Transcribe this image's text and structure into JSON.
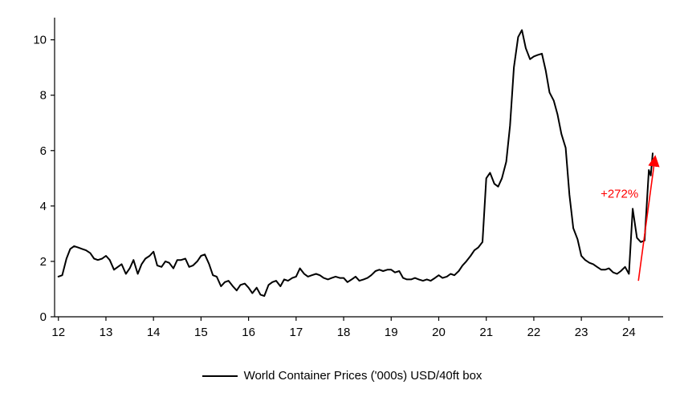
{
  "chart_data": {
    "type": "line",
    "title": "",
    "xlabel": "",
    "ylabel": "",
    "grid": false,
    "line_color": "#000000",
    "axis_color": "#000000",
    "xlim": [
      11.92,
      24.72
    ],
    "ylim": [
      0,
      10.8
    ],
    "x_ticks": [
      12,
      13,
      14,
      15,
      16,
      17,
      18,
      19,
      20,
      21,
      22,
      23,
      24
    ],
    "x_tick_labels": [
      "12",
      "13",
      "14",
      "15",
      "16",
      "17",
      "18",
      "19",
      "20",
      "21",
      "22",
      "23",
      "24"
    ],
    "y_ticks": [
      0,
      2,
      4,
      6,
      8,
      10
    ],
    "y_tick_labels": [
      "0",
      "2",
      "4",
      "6",
      "8",
      "10"
    ],
    "series": [
      {
        "name": "World Container Prices ('000s) USD/40ft box",
        "x": [
          12,
          12.08,
          12.17,
          12.25,
          12.33,
          12.42,
          12.5,
          12.58,
          12.67,
          12.75,
          12.83,
          12.92,
          13,
          13.08,
          13.17,
          13.25,
          13.33,
          13.42,
          13.5,
          13.58,
          13.67,
          13.75,
          13.83,
          13.92,
          14,
          14.08,
          14.17,
          14.25,
          14.33,
          14.42,
          14.5,
          14.58,
          14.67,
          14.75,
          14.83,
          14.92,
          15,
          15.08,
          15.17,
          15.25,
          15.33,
          15.42,
          15.5,
          15.58,
          15.67,
          15.75,
          15.83,
          15.92,
          16,
          16.08,
          16.17,
          16.25,
          16.33,
          16.42,
          16.5,
          16.58,
          16.67,
          16.75,
          16.83,
          16.92,
          17,
          17.08,
          17.17,
          17.25,
          17.33,
          17.42,
          17.5,
          17.58,
          17.67,
          17.75,
          17.83,
          17.92,
          18,
          18.08,
          18.17,
          18.25,
          18.33,
          18.42,
          18.5,
          18.58,
          18.67,
          18.75,
          18.83,
          18.92,
          19,
          19.08,
          19.17,
          19.25,
          19.33,
          19.42,
          19.5,
          19.58,
          19.67,
          19.75,
          19.83,
          19.92,
          20,
          20.08,
          20.17,
          20.25,
          20.33,
          20.42,
          20.5,
          20.58,
          20.67,
          20.75,
          20.83,
          20.92,
          21,
          21.08,
          21.17,
          21.25,
          21.33,
          21.42,
          21.5,
          21.58,
          21.67,
          21.75,
          21.83,
          21.92,
          22,
          22.08,
          22.17,
          22.25,
          22.33,
          22.42,
          22.5,
          22.58,
          22.67,
          22.75,
          22.83,
          22.92,
          23,
          23.08,
          23.17,
          23.25,
          23.33,
          23.42,
          23.5,
          23.58,
          23.67,
          23.75,
          23.83,
          23.92,
          24,
          24.08,
          24.17,
          24.25,
          24.33,
          24.42,
          24.46,
          24.5
        ],
        "y": [
          1.45,
          1.5,
          2.1,
          2.45,
          2.55,
          2.5,
          2.45,
          2.4,
          2.3,
          2.1,
          2.05,
          2.1,
          2.2,
          2.05,
          1.7,
          1.8,
          1.9,
          1.55,
          1.75,
          2.05,
          1.55,
          1.9,
          2.1,
          2.2,
          2.35,
          1.85,
          1.8,
          2.0,
          1.95,
          1.75,
          2.05,
          2.05,
          2.1,
          1.8,
          1.85,
          2.0,
          2.2,
          2.25,
          1.9,
          1.5,
          1.45,
          1.1,
          1.25,
          1.3,
          1.1,
          0.95,
          1.15,
          1.2,
          1.05,
          0.85,
          1.05,
          0.8,
          0.75,
          1.15,
          1.25,
          1.3,
          1.1,
          1.35,
          1.3,
          1.4,
          1.45,
          1.75,
          1.55,
          1.45,
          1.5,
          1.55,
          1.5,
          1.4,
          1.35,
          1.4,
          1.45,
          1.4,
          1.4,
          1.25,
          1.35,
          1.45,
          1.3,
          1.35,
          1.4,
          1.5,
          1.65,
          1.7,
          1.65,
          1.7,
          1.7,
          1.6,
          1.65,
          1.4,
          1.35,
          1.35,
          1.4,
          1.35,
          1.3,
          1.35,
          1.3,
          1.4,
          1.5,
          1.4,
          1.45,
          1.55,
          1.5,
          1.65,
          1.85,
          2.0,
          2.2,
          2.4,
          2.5,
          2.7,
          5.0,
          5.2,
          4.8,
          4.7,
          5.0,
          5.6,
          6.9,
          9.0,
          10.1,
          10.35,
          9.7,
          9.3,
          9.4,
          9.45,
          9.5,
          8.9,
          8.1,
          7.8,
          7.3,
          6.6,
          6.1,
          4.4,
          3.2,
          2.8,
          2.2,
          2.05,
          1.95,
          1.9,
          1.8,
          1.7,
          1.7,
          1.75,
          1.6,
          1.55,
          1.65,
          1.8,
          1.55,
          3.9,
          2.85,
          2.7,
          2.75,
          5.3,
          5.1,
          5.9
        ]
      }
    ],
    "annotation": {
      "text": "+272%",
      "color": "#ff0000",
      "text_x": 24.2,
      "text_y": 4.3,
      "arrow": {
        "x1": 24.2,
        "y1": 1.3,
        "x2": 24.55,
        "y2": 5.75
      }
    },
    "legend": {
      "label": "World Container Prices ('000s) USD/40ft box",
      "position": "bottom"
    }
  }
}
